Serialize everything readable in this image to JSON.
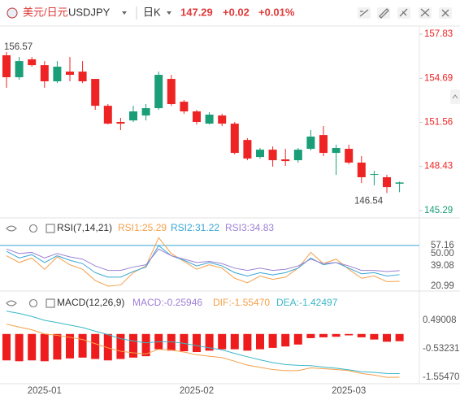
{
  "header": {
    "pair": "美元/日元",
    "symbol": "USDJPY",
    "period": "日K",
    "price": 147.29,
    "change": "+0.02",
    "change_pct": "+0.01%"
  },
  "chart_data": [
    {
      "type": "candlestick",
      "categories": [
        null,
        null,
        null,
        "2025-01",
        null,
        null,
        null,
        null,
        null,
        null,
        null,
        null,
        null,
        null,
        null,
        "2025-02",
        null,
        null,
        null,
        null,
        null,
        null,
        null,
        null,
        null,
        null,
        null,
        "2025-03",
        null,
        null,
        null,
        null
      ],
      "open": [
        156.33,
        154.77,
        156.04,
        155.63,
        154.48,
        155.17,
        155.17,
        154.65,
        152.74,
        151.59,
        151.7,
        152.05,
        152.57,
        154.65,
        153.03,
        152.34,
        151.47,
        152.05,
        151.47,
        150.31,
        149.1,
        149.62,
        148.93,
        148.87,
        149.68,
        150.66,
        149.39,
        149.68,
        148.7,
        147.83,
        147.66,
        147.2
      ],
      "high": [
        156.57,
        156.21,
        156.21,
        155.92,
        155.92,
        156.21,
        155.92,
        154.65,
        152.86,
        151.88,
        152.74,
        152.86,
        155.17,
        154.94,
        153.15,
        152.45,
        152.28,
        152.17,
        151.59,
        150.43,
        149.74,
        149.85,
        149.68,
        149.74,
        151.01,
        151.3,
        149.97,
        149.97,
        149.16,
        148.12,
        147.83,
        147.35
      ],
      "low": [
        154.02,
        154.59,
        155.52,
        154.02,
        154.36,
        154.48,
        154.36,
        152.45,
        151.41,
        151.01,
        151.59,
        151.7,
        152.45,
        152.74,
        152.17,
        151.41,
        151.41,
        151.3,
        149.28,
        148.87,
        148.99,
        148.41,
        148.47,
        148.7,
        149.56,
        149.16,
        147.83,
        148.58,
        147.25,
        147.08,
        146.54,
        146.6
      ],
      "close": [
        154.77,
        155.92,
        155.63,
        154.48,
        155.52,
        154.94,
        154.48,
        152.74,
        151.47,
        151.47,
        152.34,
        152.57,
        154.94,
        152.86,
        152.34,
        151.59,
        152.11,
        151.47,
        149.39,
        148.99,
        149.62,
        148.87,
        148.81,
        149.62,
        150.55,
        149.39,
        149.74,
        148.7,
        147.66,
        147.89,
        146.96,
        147.29
      ],
      "up_color": "#1a9e78",
      "down_color": "#ee2424",
      "ylim": [
        144.77,
        158.41
      ],
      "yticks": [
        157.83,
        154.69,
        151.56,
        148.43,
        145.29
      ],
      "annotations": [
        {
          "label": "156.57",
          "value": 156.57
        },
        {
          "label": "146.54",
          "value": 146.54
        }
      ]
    },
    {
      "type": "line",
      "title": "RSI(7,14,21)",
      "series": [
        {
          "name": "RSI1:25.29",
          "color": "#f5a04a",
          "values": [
            48,
            42,
            46,
            36,
            47,
            40,
            36,
            26,
            21,
            22,
            33,
            39,
            64,
            50,
            43,
            36,
            40,
            37,
            28,
            24,
            30,
            27,
            29,
            37,
            51,
            41,
            45,
            36,
            28,
            30,
            25,
            25.29
          ]
        },
        {
          "name": "RSI2:31.22",
          "color": "#3aa6d6",
          "values": [
            52,
            46,
            49,
            42,
            48,
            44,
            41,
            33,
            29,
            29,
            34,
            38,
            57,
            48,
            44,
            39,
            42,
            39,
            33,
            30,
            33,
            31,
            33,
            37,
            46,
            40,
            42,
            37,
            32,
            33,
            30,
            31.22
          ]
        },
        {
          "name": "RSI3:34.83",
          "color": "#9c82d4",
          "values": [
            54,
            50,
            51,
            46,
            50,
            47,
            45,
            39,
            35,
            35,
            38,
            40,
            54,
            48,
            45,
            42,
            43,
            41,
            37,
            35,
            37,
            35,
            36,
            39,
            45,
            41,
            42,
            39,
            35,
            35,
            34,
            34.83
          ]
        }
      ],
      "ref_color": "#3aa6d6",
      "ylim": [
        18.8,
        79.5
      ],
      "yticks": [
        57.16,
        {
          "value": 50,
          "label": "50.00"
        },
        39.08,
        20.99
      ]
    },
    {
      "type": "macd",
      "title": "MACD(12,26,9)",
      "series": [
        {
          "name": "MACD:-0.25946",
          "color": "#a07fd6",
          "bar_color": "#ee1c1c",
          "values": [
            -0.95,
            -0.98,
            -0.95,
            -0.98,
            -0.92,
            -0.88,
            -0.85,
            -0.9,
            -0.95,
            -0.9,
            -0.85,
            -0.8,
            -0.55,
            -0.6,
            -0.62,
            -0.65,
            -0.6,
            -0.55,
            -0.55,
            -0.6,
            -0.55,
            -0.5,
            -0.45,
            -0.38,
            -0.15,
            -0.12,
            -0.1,
            -0.05,
            -0.12,
            -0.2,
            -0.28,
            -0.25946
          ]
        },
        {
          "name": "DIF:-1.55470",
          "color": "#f5a04a",
          "values": [
            0.35,
            0.25,
            0.15,
            0.0,
            -0.05,
            -0.12,
            -0.2,
            -0.35,
            -0.5,
            -0.62,
            -0.68,
            -0.72,
            -0.55,
            -0.58,
            -0.65,
            -0.75,
            -0.8,
            -0.85,
            -0.98,
            -1.12,
            -1.2,
            -1.28,
            -1.32,
            -1.32,
            -1.22,
            -1.25,
            -1.28,
            -1.32,
            -1.42,
            -1.48,
            -1.56,
            -1.5547
          ]
        },
        {
          "name": "DEA:-1.42497",
          "color": "#3ab7c9",
          "values": [
            0.82,
            0.74,
            0.63,
            0.49,
            0.41,
            0.32,
            0.23,
            0.1,
            -0.02,
            -0.17,
            -0.25,
            -0.32,
            -0.28,
            -0.28,
            -0.34,
            -0.42,
            -0.5,
            -0.57,
            -0.7,
            -0.82,
            -0.93,
            -1.03,
            -1.1,
            -1.13,
            -1.14,
            -1.19,
            -1.23,
            -1.29,
            -1.36,
            -1.38,
            -1.42,
            -1.42497
          ]
        }
      ],
      "ylim": [
        -1.79,
        0.9
      ],
      "yticks": [
        0.49008,
        -0.53231,
        {
          "value": -1.5547,
          "label": "-1.55470"
        }
      ]
    }
  ]
}
